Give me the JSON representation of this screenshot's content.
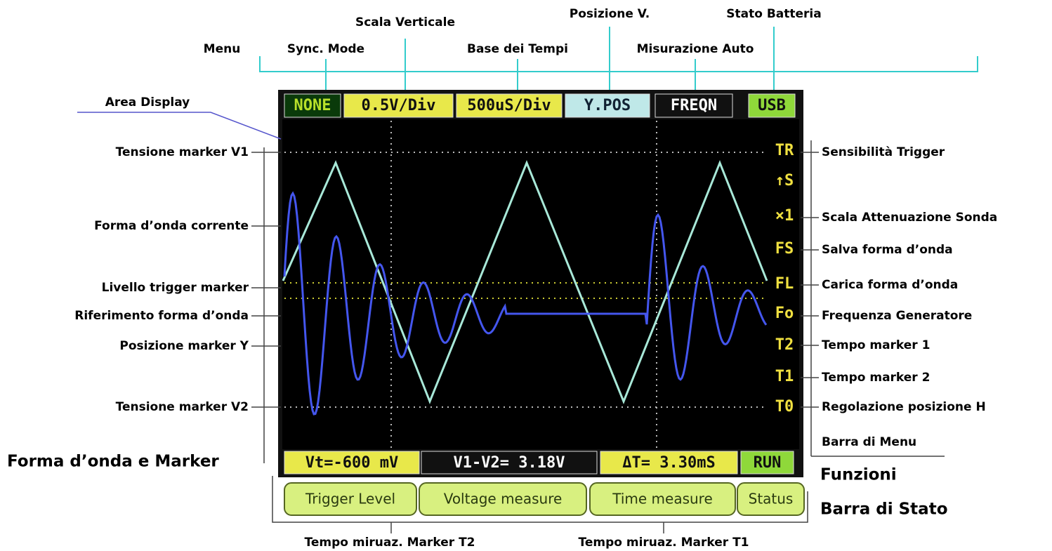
{
  "top_labels": [
    "Scala Verticale",
    "Posizione V.",
    "Stato Batteria",
    "Menu",
    "Sync. Mode",
    "Base dei Tempi",
    "Misurazione Auto"
  ],
  "area_label": "Area Display",
  "left_labels": [
    "Tensione marker V1",
    "Forma d’onda corrente",
    "Livello trigger marker",
    "Riferimento forma d’onda",
    "Posizione marker Y",
    "Tensione marker V2"
  ],
  "left_group": "Forma d’onda e Marker",
  "right_labels": [
    "Sensibilità Trigger",
    "Scala Attenuazione Sonda",
    "Salva forma d’onda",
    "Carica forma d’onda",
    "Frequenza Generatore",
    "Tempo marker 1",
    "Tempo marker 2",
    "Regolazione posizione H",
    "Barra di Menu"
  ],
  "right_groups": [
    "Funzioni",
    "Barra di Stato"
  ],
  "bottom_labels": [
    "Tempo miruaz. Marker T2",
    "Tempo miruaz. Marker T1"
  ],
  "screen": {
    "top_bar": [
      "NONE",
      "0.5V/Div",
      "500uS/Div",
      "Y.POS",
      "FREQN",
      "USB"
    ],
    "menu": [
      "TR",
      "↑S",
      "×1",
      "FS",
      "FL",
      "Fo",
      "T2",
      "T1",
      "T0"
    ],
    "bottom_bar": [
      "Vt=-600 mV",
      "V1-V2= 3.18V",
      "ΔT= 3.30mS",
      "RUN"
    ],
    "buttons": [
      "Trigger Level",
      "Voltage measure",
      "Time measure",
      "Status"
    ]
  }
}
